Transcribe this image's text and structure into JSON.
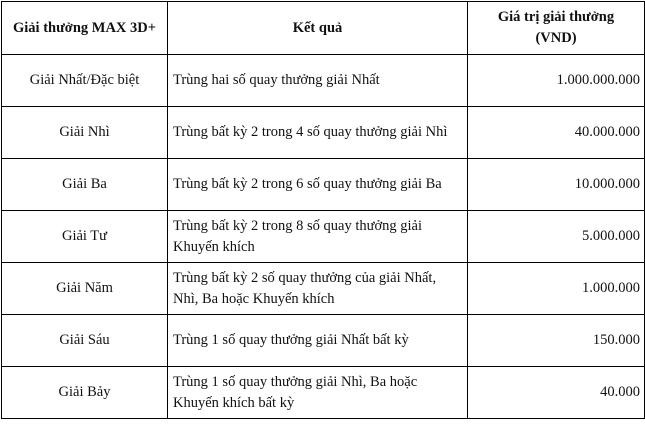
{
  "headers": [
    "Giải thưởng MAX 3D+",
    "Kết quả",
    [
      "Giá trị giải thưởng",
      "(VND)"
    ]
  ],
  "rows": [
    {
      "prize": "Giải Nhất/Đặc biệt",
      "result": [
        "Trùng hai số quay thưởng giải Nhất"
      ],
      "value": "1.000.000.000"
    },
    {
      "prize": "Giải Nhì",
      "result": [
        "Trùng bất kỳ 2 trong 4 số quay thưởng giải Nhì"
      ],
      "value": "40.000.000"
    },
    {
      "prize": "Giải Ba",
      "result": [
        "Trùng bất kỳ 2 trong 6 số quay thưởng giải Ba"
      ],
      "value": "10.000.000"
    },
    {
      "prize": "Giải Tư",
      "result": [
        "Trùng bất kỳ 2 trong 8 số quay thưởng giải",
        "Khuyến khích"
      ],
      "value": "5.000.000"
    },
    {
      "prize": "Giải Năm",
      "result": [
        "Trùng bất kỳ 2 số quay thưởng của giải Nhất,",
        "Nhì, Ba hoặc Khuyến khích"
      ],
      "value": "1.000.000"
    },
    {
      "prize": "Giải Sáu",
      "result": [
        "Trùng 1 số quay thưởng giải Nhất bất kỳ"
      ],
      "value": "150.000"
    },
    {
      "prize": "Giải Bảy",
      "result": [
        "Trùng 1 số quay thưởng giải Nhì, Ba hoặc",
        "Khuyến khích bất kỳ"
      ],
      "value": "40.000"
    }
  ]
}
